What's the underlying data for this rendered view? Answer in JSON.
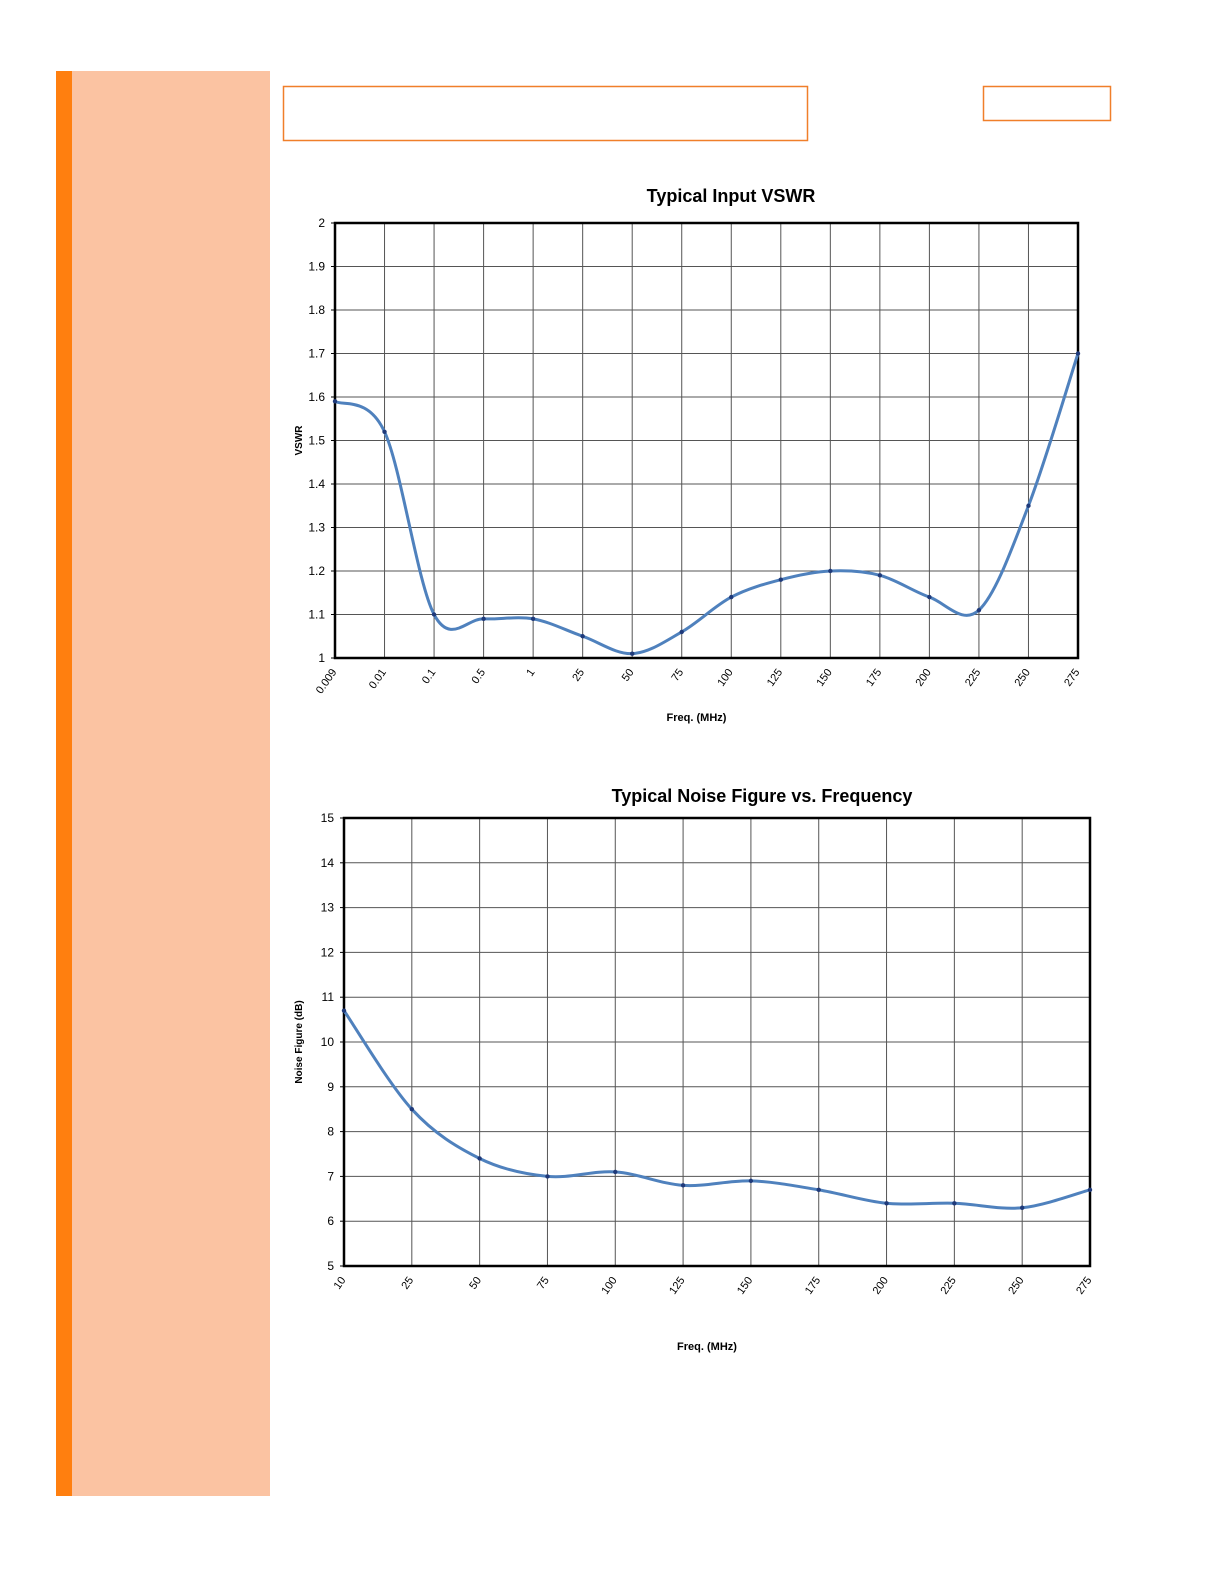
{
  "chart_data": [
    {
      "type": "line",
      "title": "Typical Input VSWR",
      "x_label": "Freq. (MHz)",
      "y_label": "VSWR",
      "categories": [
        "0.009",
        "0.01",
        "0.1",
        "0.5",
        "1",
        "25",
        "50",
        "75",
        "100",
        "125",
        "150",
        "175",
        "200",
        "225",
        "250",
        "275"
      ],
      "values": [
        1.59,
        1.52,
        1.1,
        1.09,
        1.09,
        1.05,
        1.01,
        1.06,
        1.14,
        1.18,
        1.2,
        1.19,
        1.14,
        1.11,
        1.35,
        1.7
      ],
      "color": "#4f81bd",
      "marker_color": "#1f3a7a",
      "ylim": [
        1,
        2
      ],
      "yticks": [
        1,
        1.1,
        1.2,
        1.3,
        1.4,
        1.5,
        1.6,
        1.7,
        1.8,
        1.9,
        2
      ],
      "grid": true
    },
    {
      "type": "line",
      "title": "Typical Noise Figure vs. Frequency",
      "x_label": "Freq. (MHz)",
      "y_label": "Noise Figure (dB)",
      "categories": [
        "10",
        "25",
        "50",
        "75",
        "100",
        "125",
        "150",
        "175",
        "200",
        "225",
        "250",
        "275"
      ],
      "values": [
        10.7,
        8.5,
        7.4,
        7.0,
        7.1,
        6.8,
        6.9,
        6.7,
        6.4,
        6.4,
        6.3,
        6.7
      ],
      "color": "#4f81bd",
      "marker_color": "#1f3a7a",
      "ylim": [
        5,
        15
      ],
      "yticks": [
        5,
        6,
        7,
        8,
        9,
        10,
        11,
        12,
        13,
        14,
        15
      ],
      "grid": true
    }
  ]
}
